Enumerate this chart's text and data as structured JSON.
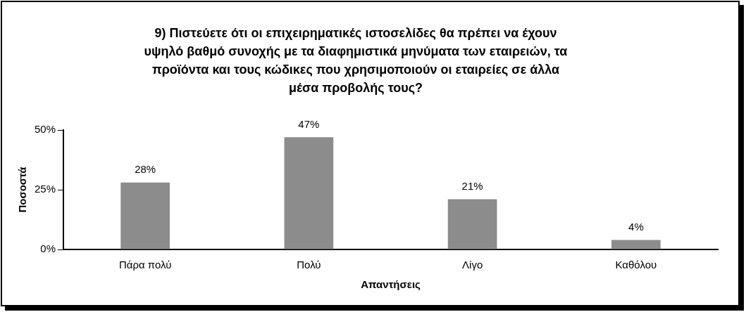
{
  "chart_data": {
    "type": "bar",
    "title": "9) Πιστεύετε ότι οι επιχειρηματικές ιστοσελίδες θα πρέπει να έχουν υψηλό βαθμό συνοχής με τα διαφημιστικά μηνύματα των εταιρειών, τα προϊόντα και τους κώδικες που χρησιμοποιούν οι εταιρείες σε άλλα μέσα προβολής τους?",
    "xlabel": "Απαντήσεις",
    "ylabel": "Ποσοστά",
    "categories": [
      "Πάρα πολύ",
      "Πολύ",
      "Λίγο",
      "Καθόλου"
    ],
    "values": [
      28,
      47,
      21,
      4
    ],
    "value_labels": [
      "28%",
      "47%",
      "21%",
      "4%"
    ],
    "color": "#8c8c8c",
    "ylim": [
      0,
      50
    ],
    "yticks": [
      {
        "value": 0,
        "label": "0%"
      },
      {
        "value": 25,
        "label": "25%"
      },
      {
        "value": 50,
        "label": "50%"
      }
    ],
    "grid": false,
    "legend": false
  }
}
